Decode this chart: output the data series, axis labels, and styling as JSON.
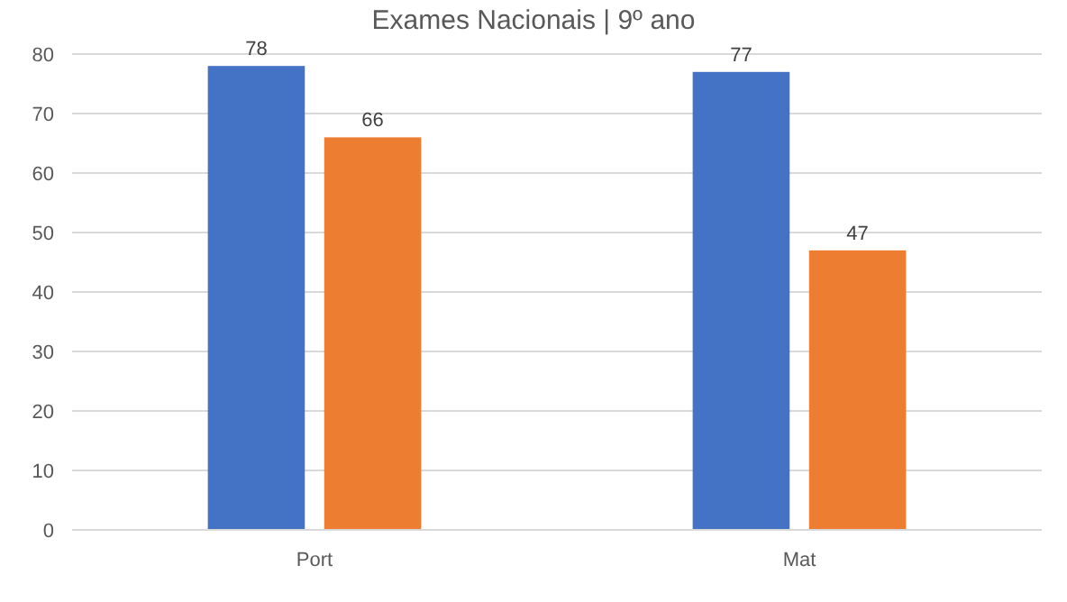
{
  "chart_data": {
    "type": "bar",
    "title": "Exames Nacionais | 9º ano",
    "categories": [
      "Port",
      "Mat"
    ],
    "series": [
      {
        "color": "#4472c4",
        "values": [
          78,
          77
        ]
      },
      {
        "color": "#ed7d31",
        "values": [
          66,
          47
        ]
      }
    ],
    "ylim": [
      0,
      80
    ],
    "yticks": [
      0,
      10,
      20,
      30,
      40,
      50,
      60,
      70,
      80
    ],
    "grid": "y",
    "data_labels": true
  }
}
